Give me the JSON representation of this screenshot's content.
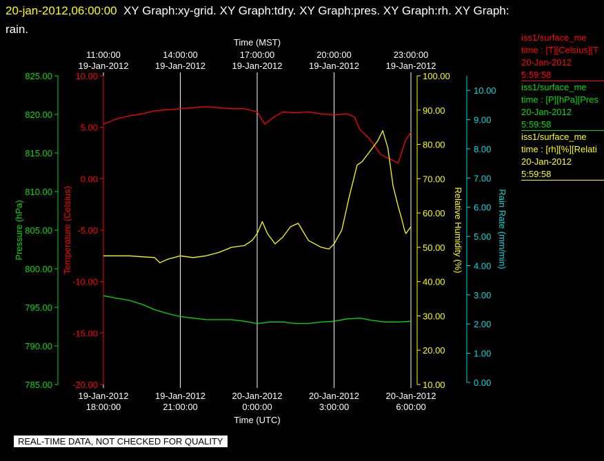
{
  "header": {
    "timestamp": "20-jan-2012,06:00:00",
    "graphs_text": "XY Graph:xy-grid.  XY Graph:tdry.  XY Graph:pres.  XY Graph:rh.  XY Graph:",
    "graphs_text_wrap": "rain."
  },
  "footer_note": "REAL-TIME DATA, NOT CHECKED FOR QUALITY",
  "legend": [
    {
      "line1": "iss1/surface_me",
      "line2": "time : [T][Celsius][T",
      "line3": "20-Jan-2012",
      "line4": "5:59:58",
      "color": "#ff0000"
    },
    {
      "line1": "iss1/surface_me",
      "line2": "time : [P][hPa][Pres",
      "line3": "20-Jan-2012",
      "line4": "5:59:58",
      "color": "#00dd00"
    },
    {
      "line1": "iss1/surface_me",
      "line2": "time : [rh][%][Relati",
      "line3": "20-Jan-2012",
      "line4": "5:59:58",
      "color": "#ffff00"
    }
  ],
  "chart_data": {
    "type": "line",
    "x_top_label": "Time (MST)",
    "x_bottom_label": "Time (UTC)",
    "x_top_ticks": [
      {
        "time": "11:00:00",
        "date": "19-Jan-2012"
      },
      {
        "time": "14:00:00",
        "date": "19-Jan-2012"
      },
      {
        "time": "17:00:00",
        "date": "19-Jan-2012"
      },
      {
        "time": "20:00:00",
        "date": "19-Jan-2012"
      },
      {
        "time": "23:00:00",
        "date": "19-Jan-2012"
      }
    ],
    "x_bottom_ticks": [
      {
        "date": "19-Jan-2012",
        "time": "18:00:00"
      },
      {
        "date": "19-Jan-2012",
        "time": "21:00:00"
      },
      {
        "date": "20-Jan-2012",
        "time": "0:00:00"
      },
      {
        "date": "20-Jan-2012",
        "time": "3:00:00"
      },
      {
        "date": "20-Jan-2012",
        "time": "6:00:00"
      }
    ],
    "x_range_hours_utc": [
      0,
      12
    ],
    "x_axis_start_utc": "19-Jan-2012 18:00:00",
    "grid": "vertical",
    "axes": {
      "pressure": {
        "label": "Pressure (hPa)",
        "min": 785,
        "max": 825,
        "ticks": [
          "785.00",
          "790.00",
          "795.00",
          "800.00",
          "805.00",
          "810.00",
          "815.00",
          "820.00",
          "825.00"
        ],
        "color": "#00dd00"
      },
      "temperature": {
        "label": "Temperature (Celsius)",
        "min": -20,
        "max": 10,
        "ticks": [
          "-20.00",
          "-15.00",
          "-10.00",
          "-5.00",
          "0.00",
          "5.00",
          "10.00"
        ],
        "color": "#ff0000"
      },
      "humidity": {
        "label": "Relative Humidity (%)",
        "min": 10,
        "max": 100,
        "ticks": [
          "10.00",
          "20.00",
          "30.00",
          "40.00",
          "50.00",
          "60.00",
          "70.00",
          "80.00",
          "90.00",
          "100.00"
        ],
        "color": "#ffff00"
      },
      "rain": {
        "label": "Rain Rate (mm/min)",
        "min": 0,
        "max": 10.5,
        "ticks": [
          "0.00",
          "1.00",
          "2.00",
          "3.00",
          "4.00",
          "5.00",
          "6.00",
          "7.00",
          "8.00",
          "9.00",
          "10.00"
        ],
        "color": "#00dddd"
      }
    },
    "series": [
      {
        "axis": "temperature",
        "color": "#ff0000",
        "x": [
          0,
          0.5,
          1,
          1.5,
          2,
          2.5,
          3,
          3.5,
          4,
          4.5,
          5,
          5.5,
          6,
          6.3,
          6.6,
          7,
          7.5,
          8,
          8.5,
          9,
          9.5,
          9.8,
          10,
          10.3,
          10.5,
          10.8,
          11,
          11.2,
          11.5,
          11.8,
          12
        ],
        "y": [
          5.3,
          5.8,
          6.1,
          6.3,
          6.6,
          6.7,
          6.8,
          6.9,
          7.0,
          6.9,
          6.8,
          6.8,
          6.5,
          5.3,
          5.9,
          6.5,
          6.4,
          6.5,
          6.3,
          6.2,
          6.3,
          6.0,
          4.8,
          4.1,
          3.5,
          2.4,
          2.1,
          1.9,
          1.5,
          3.8,
          4.5
        ]
      },
      {
        "axis": "pressure",
        "color": "#00dd00",
        "x": [
          0,
          0.5,
          1,
          1.5,
          2,
          2.5,
          3,
          3.5,
          4,
          4.5,
          5,
          5.5,
          6,
          6.5,
          7,
          7.5,
          8,
          8.5,
          9,
          9.5,
          10,
          10.5,
          11,
          11.5,
          12
        ],
        "y": [
          796.5,
          796.2,
          795.9,
          795.4,
          794.7,
          794.2,
          793.8,
          793.6,
          793.4,
          793.4,
          793.4,
          793.2,
          792.9,
          793.1,
          793.1,
          792.9,
          792.9,
          793.1,
          793.2,
          793.5,
          793.6,
          793.3,
          793.1,
          793.1,
          793.2
        ]
      },
      {
        "axis": "humidity",
        "color": "#ffff00",
        "x": [
          0,
          1,
          2,
          2.2,
          2.5,
          3,
          3.5,
          4,
          4.5,
          5,
          5.5,
          5.8,
          6,
          6.2,
          6.4,
          6.7,
          7,
          7.3,
          7.6,
          8,
          8.5,
          8.8,
          9,
          9.3,
          9.6,
          9.9,
          10.1,
          10.3,
          10.5,
          10.7,
          10.9,
          11.1,
          11.3,
          11.5,
          11.65,
          11.75,
          11.8,
          12
        ],
        "y": [
          47.5,
          47.5,
          47,
          45.5,
          46.5,
          47.5,
          47,
          47.5,
          48.5,
          50,
          50.5,
          52,
          54,
          57.5,
          54,
          51,
          53,
          56,
          57,
          52,
          50,
          49.5,
          51,
          55,
          65,
          74,
          75,
          77,
          79,
          81,
          84,
          79,
          68,
          62,
          58,
          55,
          54,
          56
        ]
      }
    ]
  }
}
